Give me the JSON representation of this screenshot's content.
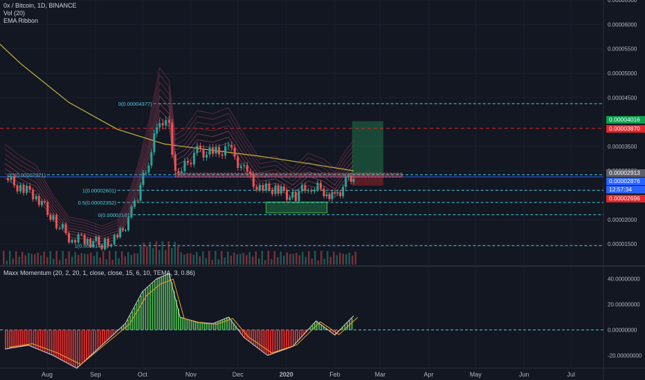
{
  "legend": {
    "symbol": "0x / Bitcoin, 1D, BINANCE",
    "volume": "Vol (20)",
    "ribbon": "EMA Ribbon",
    "momentum": "Maxx Momentum (20, 2, 20, 1, close, close, 15, 6, 10, TEMA, 3, 0.86)"
  },
  "price_tags": {
    "high_green": "0.00004016",
    "level_red": "0.00003870",
    "last_gray": "0.00002913",
    "current_blue": "0.00002876",
    "countdown": "12:57:34",
    "low_red": "0.00002696"
  },
  "colors": {
    "background": "#131722",
    "up": "#26a69a",
    "down": "#ef5350",
    "ma200": "#c8b83a",
    "fib": "#4dd0e1",
    "green_tag": "#0e9f4f",
    "red_tag": "#e0262b",
    "blue_tag": "#2962ff",
    "gray_tag": "#5d606b"
  },
  "chart_data": [
    {
      "type": "line",
      "title": "0x / Bitcoin, 1D, BINANCE",
      "x_labels": [
        "Aug",
        "Sep",
        "Oct",
        "Nov",
        "Dec",
        "2020",
        "Feb",
        "Mar",
        "Apr",
        "May",
        "Jun",
        "Jul"
      ],
      "y_ticks": [
        "0.00006500",
        "0.00006000",
        "0.00005500",
        "0.00005000",
        "0.00004500",
        "0.00003500",
        "0.00003000",
        "0.00002000",
        "0.00001500"
      ],
      "ylim": [
        1.05e-05,
        6.5e-05
      ],
      "close_path": [
        [
          "2019-07-05",
          2.85e-05
        ],
        [
          "2019-07-15",
          2.65e-05
        ],
        [
          "2019-07-25",
          2.5e-05
        ],
        [
          "2019-08-05",
          2e-05
        ],
        [
          "2019-08-15",
          1.65e-05
        ],
        [
          "2019-08-25",
          1.6e-05
        ],
        [
          "2019-09-05",
          1.5e-05
        ],
        [
          "2019-09-15",
          1.6e-05
        ],
        [
          "2019-09-22",
          2e-05
        ],
        [
          "2019-09-28",
          2.5e-05
        ],
        [
          "2019-10-05",
          3.2e-05
        ],
        [
          "2019-10-12",
          4.1e-05
        ],
        [
          "2019-10-18",
          3.9e-05
        ],
        [
          "2019-10-22",
          3e-05
        ],
        [
          "2019-10-28",
          3.1e-05
        ],
        [
          "2019-11-05",
          3.4e-05
        ],
        [
          "2019-11-15",
          3.35e-05
        ],
        [
          "2019-11-25",
          3.45e-05
        ],
        [
          "2019-12-05",
          3e-05
        ],
        [
          "2019-12-15",
          2.6e-05
        ],
        [
          "2019-12-25",
          2.65e-05
        ],
        [
          "2020-01-05",
          2.45e-05
        ],
        [
          "2020-01-15",
          2.7e-05
        ],
        [
          "2020-01-25",
          2.6e-05
        ],
        [
          "2020-02-01",
          2.45e-05
        ],
        [
          "2020-02-08",
          2.75e-05
        ],
        [
          "2020-02-13",
          2.91e-05
        ]
      ],
      "moving_average": [
        [
          "2019-06-20",
          5.95e-05
        ],
        [
          "2019-07-15",
          5.2e-05
        ],
        [
          "2019-08-15",
          4.4e-05
        ],
        [
          "2019-09-15",
          3.85e-05
        ],
        [
          "2019-10-15",
          3.55e-05
        ],
        [
          "2019-11-15",
          3.42e-05
        ],
        [
          "2019-12-15",
          3.3e-05
        ],
        [
          "2020-01-15",
          3.15e-05
        ],
        [
          "2020-02-13",
          3e-05
        ]
      ],
      "fib_levels": [
        {
          "label": "0(0.00004377)",
          "value": 4.377e-05
        },
        {
          "label": "0.5(0.00002921)",
          "value": 2.921e-05
        },
        {
          "label": "1(0.00002601)",
          "value": 2.601e-05
        },
        {
          "label": "0.5(0.00002352)",
          "value": 2.352e-05
        },
        {
          "label": "0(0.00002101)",
          "value": 2.101e-05
        },
        {
          "label": "1(0.00001465)",
          "value": 1.465e-05
        }
      ],
      "position": {
        "entry": 2.913e-05,
        "target": 4.016e-05,
        "stop": 2.696e-05
      },
      "resistance": 3.87e-05
    },
    {
      "type": "line",
      "title": "Maxx Momentum (20, 2, 20, 1, close, close, 15, 6, 10, TEMA, 3, 0.86)",
      "y_ticks": [
        "40.00000000",
        "20.00000000",
        "0.00000000",
        "-20.00000000"
      ],
      "ylim": [
        -30,
        50
      ],
      "histogram": [
        [
          "2019-07-05",
          -15
        ],
        [
          "2019-07-20",
          -12
        ],
        [
          "2019-08-05",
          -20
        ],
        [
          "2019-08-20",
          -30
        ],
        [
          "2019-09-05",
          -12
        ],
        [
          "2019-09-20",
          5
        ],
        [
          "2019-10-01",
          30
        ],
        [
          "2019-10-10",
          40
        ],
        [
          "2019-10-18",
          44
        ],
        [
          "2019-10-25",
          10
        ],
        [
          "2019-11-05",
          6
        ],
        [
          "2019-11-15",
          5
        ],
        [
          "2019-11-25",
          10
        ],
        [
          "2019-12-05",
          -6
        ],
        [
          "2019-12-20",
          -20
        ],
        [
          "2020-01-05",
          -13
        ],
        [
          "2020-01-20",
          7
        ],
        [
          "2020-02-01",
          -4
        ],
        [
          "2020-02-13",
          11
        ]
      ]
    }
  ]
}
